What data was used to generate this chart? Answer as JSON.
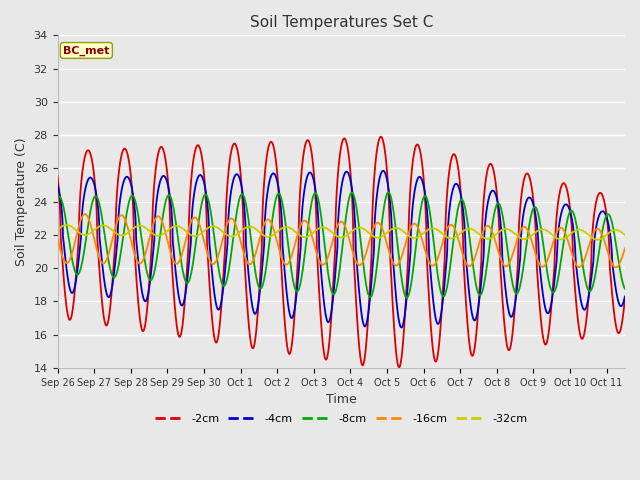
{
  "title": "Soil Temperatures Set C",
  "xlabel": "Time",
  "ylabel": "Soil Temperature (C)",
  "ylim": [
    14,
    34
  ],
  "yticks": [
    14,
    16,
    18,
    20,
    22,
    24,
    26,
    28,
    30,
    32,
    34
  ],
  "annotation": "BC_met",
  "colors": {
    "-2cm": "#dd0000",
    "-4cm": "#0000cc",
    "-8cm": "#00aa00",
    "-16cm": "#ff8800",
    "-32cm": "#cccc00"
  },
  "tick_labels": [
    "Sep 26",
    "Sep 27",
    "Sep 28",
    "Sep 29",
    "Sep 30",
    "Oct 1",
    "Oct 2",
    "Oct 3",
    "Oct 4",
    "Oct 5",
    "Oct 6",
    "Oct 7",
    "Oct 8",
    "Oct 9",
    "Oct 10",
    "Oct 11"
  ],
  "bg_color": "#e8e8e8",
  "grid_color": "#ffffff"
}
